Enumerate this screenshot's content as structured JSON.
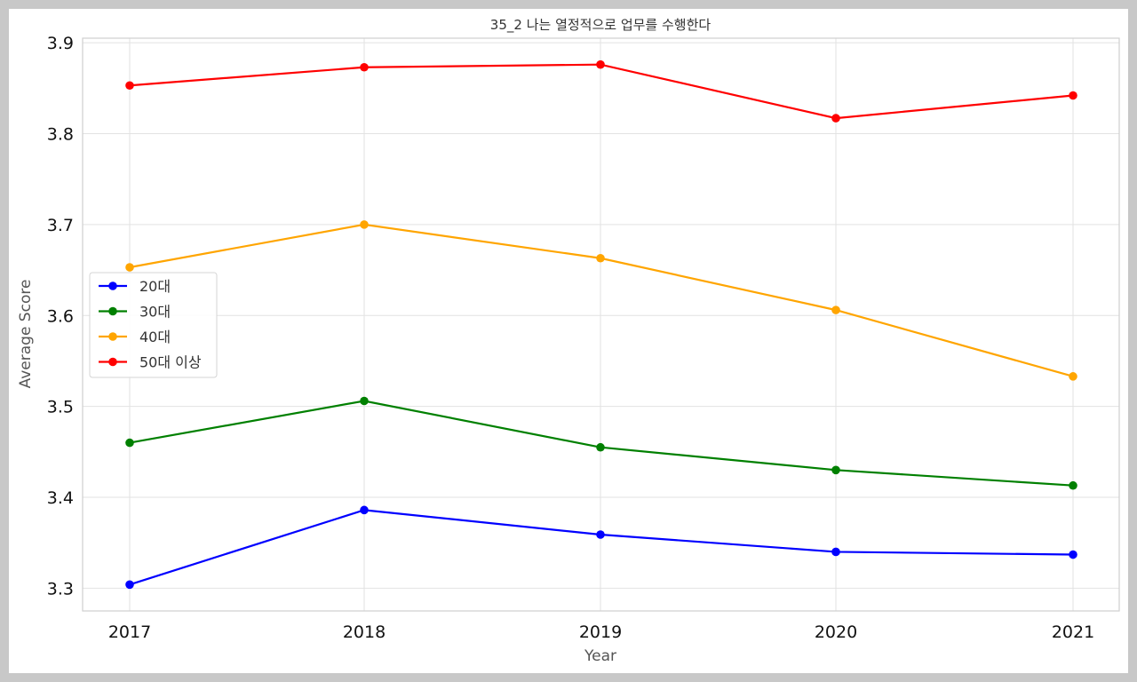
{
  "chart_data": {
    "type": "line",
    "title": "35_2 나는 열정적으로 업무를 수행한다",
    "xlabel": "Year",
    "ylabel": "Average Score",
    "x": [
      2017,
      2018,
      2019,
      2020,
      2021
    ],
    "ylim": [
      3.275,
      3.905
    ],
    "yticks": [
      3.3,
      3.4,
      3.5,
      3.6,
      3.7,
      3.8,
      3.9
    ],
    "y_tick_labels": [
      "3.3",
      "3.4",
      "3.5",
      "3.6",
      "3.7",
      "3.8",
      "3.9"
    ],
    "x_tick_labels": [
      "2017",
      "2018",
      "2019",
      "2020",
      "2021"
    ],
    "grid": true,
    "legend_position": "center-left",
    "series": [
      {
        "name": "20대",
        "color": "#0000ff",
        "values": [
          3.304,
          3.386,
          3.359,
          3.34,
          3.337
        ]
      },
      {
        "name": "30대",
        "color": "#008000",
        "values": [
          3.46,
          3.506,
          3.455,
          3.43,
          3.413
        ]
      },
      {
        "name": "40대",
        "color": "#ffa500",
        "values": [
          3.653,
          3.7,
          3.663,
          3.606,
          3.533
        ]
      },
      {
        "name": "50대 이상",
        "color": "#ff0000",
        "values": [
          3.853,
          3.873,
          3.876,
          3.817,
          3.842
        ]
      }
    ]
  }
}
